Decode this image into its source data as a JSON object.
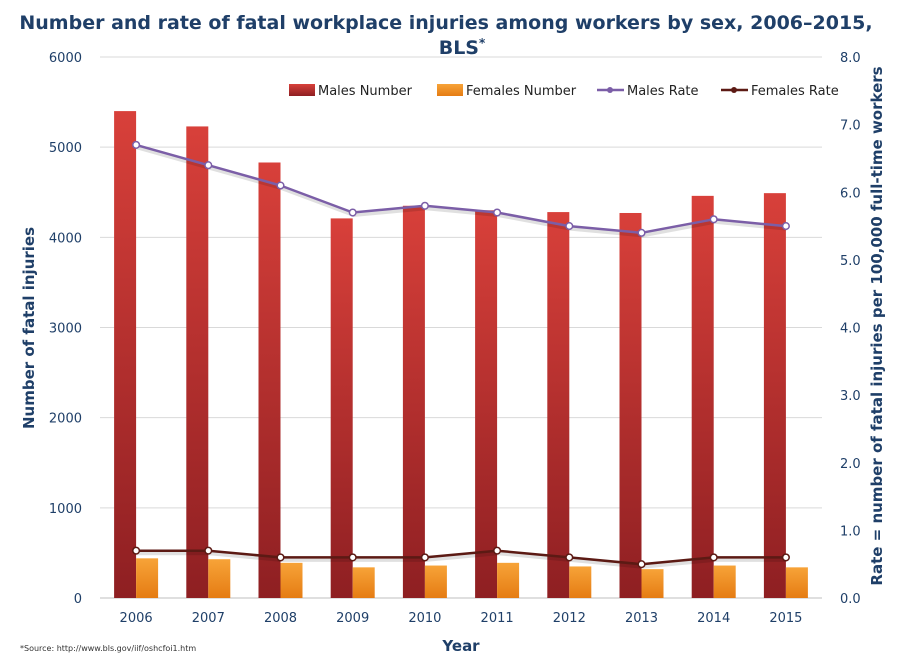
{
  "chart_data": {
    "type": "bar",
    "title_line1": "Number and rate of fatal workplace injuries among workers by sex, 2006–2015,",
    "title_line2": "BLS",
    "title_mark": "*",
    "xlabel": "Year",
    "ylabel": "Number of fatal  injuries",
    "y2label": "Rate = number of fatal  injuries per 100,000 full-time workers",
    "ylim": [
      0,
      6000
    ],
    "y2lim": [
      0,
      8
    ],
    "yticks": [
      "0",
      "1000",
      "2000",
      "3000",
      "4000",
      "5000",
      "6000"
    ],
    "y2ticks": [
      "0.0",
      "1.0",
      "2.0",
      "3.0",
      "4.0",
      "5.0",
      "6.0",
      "7.0",
      "8.0"
    ],
    "categories": [
      "2006",
      "2007",
      "2008",
      "2009",
      "2010",
      "2011",
      "2012",
      "2013",
      "2014",
      "2015"
    ],
    "bar_series": [
      {
        "name": "Males Number",
        "values": [
          5400,
          5230,
          4830,
          4210,
          4350,
          4300,
          4280,
          4270,
          4460,
          4490
        ],
        "color": "#c0392b"
      },
      {
        "name": "Females Number",
        "values": [
          440,
          430,
          390,
          340,
          360,
          390,
          350,
          320,
          360,
          340
        ],
        "color": "#f5921e"
      }
    ],
    "line_series": [
      {
        "name": "Males Rate",
        "values": [
          6.7,
          6.4,
          6.1,
          5.7,
          5.8,
          5.7,
          5.5,
          5.4,
          5.6,
          5.5
        ],
        "color": "#7b5ea7"
      },
      {
        "name": "Females Rate",
        "values": [
          0.7,
          0.7,
          0.6,
          0.6,
          0.6,
          0.7,
          0.6,
          0.5,
          0.6,
          0.6
        ],
        "color": "#5c1a14"
      }
    ],
    "legend_position": "top-right",
    "grid": true
  },
  "source_note": "*Source: http://www.bls.gov/iif/oshcfoi1.htm"
}
